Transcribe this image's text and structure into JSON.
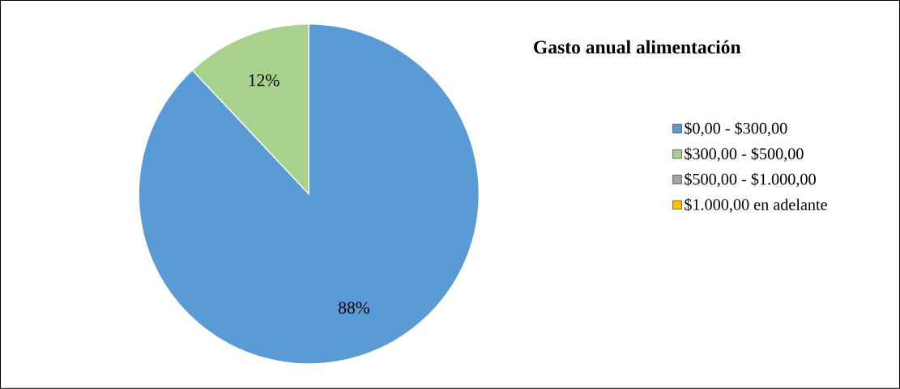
{
  "chart_data": {
    "type": "pie",
    "title": "Gasto anual alimentación",
    "categories": [
      "$0,00 - $300,00",
      "$300,00 - $500,00",
      "$500,00 - $1.000,00",
      "$1.000,00  en adelante"
    ],
    "values": [
      88,
      12,
      0,
      0
    ],
    "value_labels": [
      "88%",
      "12%",
      null,
      null
    ],
    "colors": [
      "#5b9bd5",
      "#a9d18e",
      "#a5a5a5",
      "#ffc000"
    ],
    "legend": "right"
  }
}
